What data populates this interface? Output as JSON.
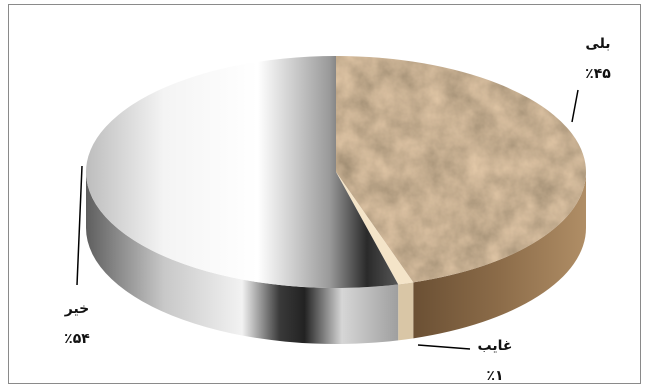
{
  "chart_data": {
    "type": "pie",
    "title": "",
    "slices": [
      {
        "label": "بلی",
        "value": 45,
        "value_label": "٪۴۵",
        "color": "#9a7b55"
      },
      {
        "label": "غایب",
        "value": 1,
        "value_label": "٪۱",
        "color": "#f3e2c4"
      },
      {
        "label": "خیر",
        "value": 54,
        "value_label": "٪۵۴",
        "color": "#d4d4d4"
      }
    ],
    "legend": "none",
    "style": "3d"
  }
}
